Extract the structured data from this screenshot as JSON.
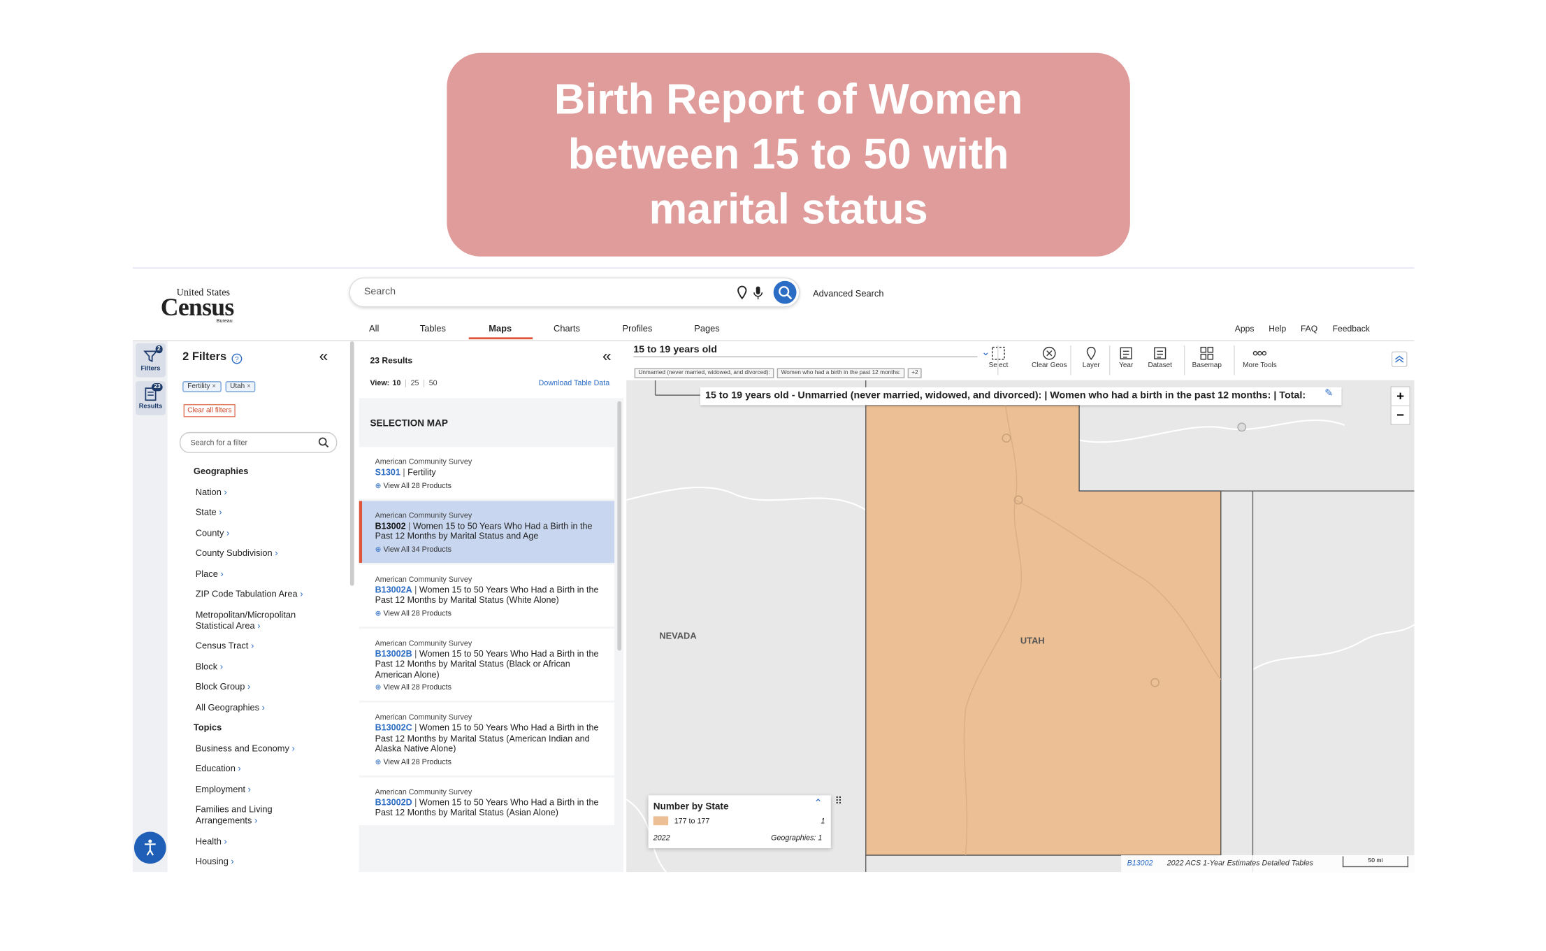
{
  "banner": {
    "title": "Birth Report of Women between 15 to 50 with marital status"
  },
  "header": {
    "logo": [
      "United States",
      "Census",
      "Bureau"
    ],
    "search_placeholder": "Search",
    "advanced_search": "Advanced Search",
    "tabs": [
      "All",
      "Tables",
      "Maps",
      "Charts",
      "Profiles",
      "Pages"
    ],
    "links": [
      "Apps",
      "Help",
      "FAQ",
      "Feedback"
    ]
  },
  "rail": [
    {
      "label": "Filters",
      "badge": "2"
    },
    {
      "label": "Results",
      "badge": "23"
    }
  ],
  "filters": {
    "title": "2 Filters",
    "chips": [
      "Fertility",
      "Utah"
    ],
    "clear": "Clear all filters",
    "search_placeholder": "Search for a filter",
    "sections": [
      {
        "title": "Geographies",
        "items": [
          "Nation",
          "State",
          "County",
          "County Subdivision",
          "Place",
          "ZIP Code Tabulation Area",
          "Metropolitan/Micropolitan Statistical Area",
          "Census Tract",
          "Block",
          "Block Group",
          "All Geographies"
        ]
      },
      {
        "title": "Topics",
        "items": [
          "Business and Economy",
          "Education",
          "Employment",
          "Families and Living Arrangements",
          "Health",
          "Housing"
        ]
      }
    ]
  },
  "results": {
    "count": "23 Results",
    "view_label": "View:",
    "view_options": [
      "10",
      "25",
      "50"
    ],
    "download": "Download Table Data",
    "selection_map": "SELECTION MAP",
    "items": [
      {
        "survey": "American Community Survey",
        "code": "S1301",
        "title": "Fertility",
        "products": "View All 28 Products"
      },
      {
        "survey": "American Community Survey",
        "code": "B13002",
        "title": "Women 15 to 50 Years Who Had a Birth in the Past 12 Months by Marital Status and Age",
        "products": "View All 34 Products"
      },
      {
        "survey": "American Community Survey",
        "code": "B13002A",
        "title": "Women 15 to 50 Years Who Had a Birth in the Past 12 Months by Marital Status (White Alone)",
        "products": "View All 28 Products"
      },
      {
        "survey": "American Community Survey",
        "code": "B13002B",
        "title": "Women 15 to 50 Years Who Had a Birth in the Past 12 Months by Marital Status (Black or African American Alone)",
        "products": "View All 28 Products"
      },
      {
        "survey": "American Community Survey",
        "code": "B13002C",
        "title": "Women 15 to 50 Years Who Had a Birth in the Past 12 Months by Marital Status (American Indian and Alaska Native Alone)",
        "products": "View All 28 Products"
      },
      {
        "survey": "American Community Survey",
        "code": "B13002D",
        "title": "Women 15 to 50 Years Who Had a Birth in the Past 12 Months by Marital Status (Asian Alone)"
      }
    ]
  },
  "map": {
    "dropdown": "15 to 19 years old",
    "chips": [
      "Unmarried (never married, widowed, and divorced):",
      "Women who had a birth in the past 12 months:",
      "+2"
    ],
    "tools": [
      "Select",
      "Clear Geos",
      "Layer",
      "Year",
      "Dataset",
      "Basemap",
      "More Tools"
    ],
    "tooltip": "15 to 19 years old - Unmarried (never married, widowed, and divorced): | Women who had a birth in the past 12 months: | Total:",
    "labels": [
      "NEVADA",
      "UTAH"
    ],
    "zoom": [
      "+",
      "−"
    ],
    "legend": {
      "title": "Number by State",
      "range": "177 to 177",
      "count": "1",
      "year": "2022",
      "geographies": "Geographies: 1"
    },
    "footer": {
      "code": "B13002",
      "source": "2022 ACS 1-Year Estimates Detailed Tables",
      "scale": "50 mi"
    }
  }
}
